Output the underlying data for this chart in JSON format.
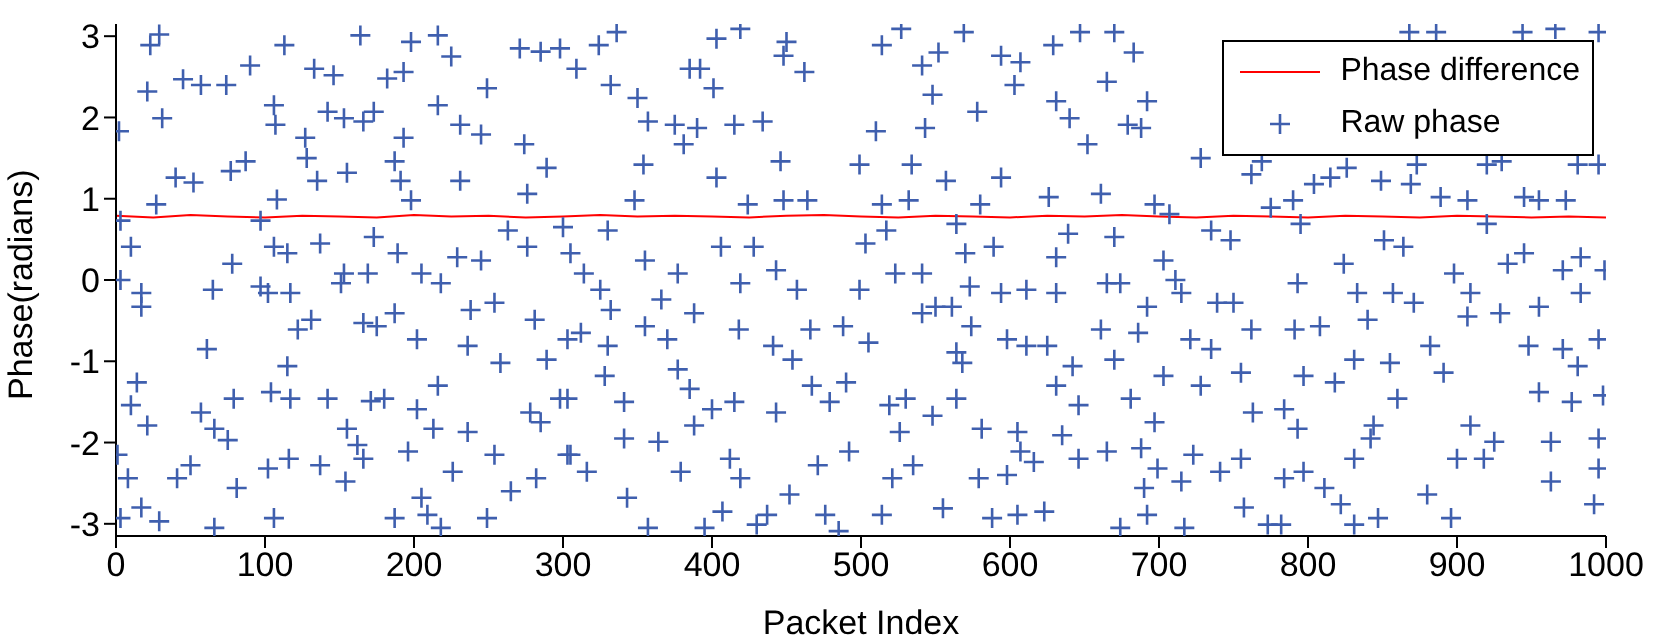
{
  "chart_data": {
    "type": "scatter",
    "xlabel": "Packet Index",
    "ylabel": "Phase(radians)",
    "xlim": [
      0,
      1000
    ],
    "ylim": [
      -3.15,
      3.15
    ],
    "xticks": [
      0,
      100,
      200,
      300,
      400,
      500,
      600,
      700,
      800,
      900,
      1000
    ],
    "yticks": [
      -3,
      -2,
      -1,
      0,
      1,
      2,
      3
    ],
    "legend": "top right",
    "series": [
      {
        "name": "Phase difference",
        "type": "line",
        "color": "#ff0000",
        "marker": "none",
        "x": [
          0,
          25,
          50,
          75,
          100,
          125,
          150,
          175,
          200,
          225,
          250,
          275,
          300,
          325,
          350,
          375,
          400,
          425,
          450,
          475,
          500,
          525,
          550,
          575,
          600,
          625,
          650,
          675,
          700,
          725,
          750,
          775,
          800,
          825,
          850,
          875,
          900,
          925,
          950,
          975,
          1000
        ],
        "values": [
          0.79,
          0.77,
          0.8,
          0.78,
          0.77,
          0.79,
          0.78,
          0.77,
          0.8,
          0.78,
          0.79,
          0.77,
          0.78,
          0.8,
          0.78,
          0.79,
          0.78,
          0.77,
          0.79,
          0.8,
          0.78,
          0.77,
          0.79,
          0.78,
          0.77,
          0.79,
          0.78,
          0.8,
          0.78,
          0.77,
          0.79,
          0.78,
          0.77,
          0.79,
          0.78,
          0.77,
          0.79,
          0.78,
          0.77,
          0.78,
          0.77
        ]
      },
      {
        "name": "Raw phase",
        "color": "#3f5fae",
        "marker": "cross",
        "x": [
          2,
          29,
          23,
          21,
          31,
          45,
          57,
          40,
          52,
          27,
          3,
          10,
          17,
          17,
          3,
          14,
          10,
          21,
          1,
          8,
          17,
          3,
          29,
          41,
          50,
          57,
          66,
          61,
          65,
          78,
          77,
          74,
          90,
          87,
          97,
          97,
          79,
          75,
          81,
          66,
          106,
          102,
          104,
          102,
          106,
          108,
          107,
          113,
          106,
          115,
          117,
          115,
          116,
          117,
          127,
          128,
          135,
          133,
          142,
          146,
          153,
          155,
          164,
          166,
          151,
          142,
          155,
          154,
          137,
          131,
          122,
          137,
          153,
          169,
          173,
          166,
          175,
          171,
          166,
          162,
          180,
          187,
          173,
          182,
          187,
          191,
          193,
          198,
          193,
          198,
          189,
          205,
          187,
          202,
          196,
          202,
          205,
          209,
          216,
          216,
          225,
          231,
          231,
          229,
          218,
          213,
          216,
          218,
          226,
          236,
          236,
          238,
          245,
          249,
          245,
          254,
          258,
          254,
          249,
          265,
          263,
          271,
          276,
          276,
          274,
          285,
          289,
          281,
          278,
          285,
          282,
          289,
          298,
          300,
          298,
          303,
          336,
          324,
          309,
          332,
          350,
          357,
          375,
          381,
          354,
          348,
          330,
          305,
          314,
          325,
          332,
          303,
          312,
          330,
          328,
          303,
          341,
          341,
          305,
          316,
          343,
          357,
          379,
          364,
          385,
          377,
          370,
          355,
          366,
          377,
          355,
          388,
          385,
          392,
          401,
          403,
          419,
          415,
          403,
          390,
          424,
          406,
          419,
          428,
          418,
          400,
          415,
          388,
          412,
          419,
          407,
          395,
          437,
          430,
          452,
          443,
          441,
          443,
          448,
          446,
          434,
          448,
          450,
          464,
          462,
          457,
          466,
          454,
          467,
          479,
          471,
          476,
          485,
          492,
          490,
          488,
          499,
          503,
          499,
          510,
          514,
          527,
          514,
          517,
          523,
          505,
          519,
          530,
          526,
          521,
          514,
          535,
          555,
          548,
          541,
          550,
          541,
          532,
          534,
          541,
          552,
          548,
          543,
          557,
          564,
          570,
          573,
          561,
          574,
          564,
          568,
          564,
          581,
          579,
          588,
          598,
          598,
          594,
          589,
          580,
          594,
          594,
          569,
          578,
          603,
          607,
          629,
          647,
          631,
          640,
          652,
          626,
          639,
          631,
          665,
          631,
          611,
          611,
          625,
          642,
          631,
          646,
          635,
          605,
          607,
          616,
          646,
          623,
          605,
          670,
          683,
          665,
          692,
          679,
          688,
          661,
          697,
          707,
          670,
          703,
          674,
          692,
          711,
          686,
          661,
          670,
          703,
          681,
          697,
          665,
          688,
          699,
          690,
          715,
          692,
          717,
          674,
          723,
          728,
          735,
          721,
          739,
          715,
          735,
          748,
          728,
          762,
          769,
          750,
          762,
          755,
          763,
          755,
          741,
          757,
          773,
          782,
          775,
          790,
          795,
          804,
          815,
          826,
          824,
          793,
          808,
          791,
          797,
          784,
          793,
          784,
          797,
          811,
          822,
          831,
          818,
          831,
          840,
          833,
          851,
          869,
          889,
          907,
          864,
          857,
          871,
          855,
          860,
          844,
          842,
          831,
          847,
          880,
          896,
          900,
          918,
          925,
          909,
          891,
          882,
          907,
          898,
          909,
          929,
          920,
          934,
          945,
          955,
          948,
          971,
          955,
          963,
          977,
          981,
          995,
          998,
          995,
          995,
          992,
          963,
          983,
          999,
          983,
          971,
          955,
          945,
          973,
          995,
          981,
          930,
          920,
          873,
          849,
          868,
          886,
          944,
          966,
          995
        ],
        "values": [
          1.83,
          3.02,
          2.89,
          2.32,
          1.99,
          2.47,
          2.4,
          1.26,
          1.2,
          0.93,
          0.73,
          0.41,
          -0.16,
          -0.33,
          0,
          -1.26,
          -1.54,
          -1.79,
          -2.15,
          -2.44,
          -2.8,
          -2.93,
          -2.97,
          -2.44,
          -2.28,
          -1.63,
          -1.83,
          -0.85,
          -0.12,
          0.2,
          1.34,
          2.4,
          2.64,
          1.46,
          0.73,
          -0.08,
          -1.46,
          -1.97,
          -2.56,
          -3.05,
          -2.93,
          -2.32,
          -1.38,
          -0.16,
          0.41,
          0.99,
          1.91,
          2.89,
          2.15,
          0.33,
          -0.16,
          -1.06,
          -2.2,
          -1.46,
          1.75,
          1.5,
          1.22,
          2.6,
          2.07,
          2.52,
          1.99,
          1.32,
          3.01,
          1.95,
          -0.04,
          -1.46,
          -1.83,
          -2.48,
          -2.28,
          -0.49,
          -0.61,
          0.45,
          0.08,
          0.08,
          0.53,
          -0.53,
          -0.57,
          -1.49,
          -2.2,
          -2.03,
          -1.46,
          -2.93,
          2.07,
          2.48,
          1.46,
          1.22,
          2.56,
          2.93,
          1.75,
          0.98,
          0.33,
          0.08,
          -0.41,
          -0.73,
          -2.11,
          -1.59,
          -2.68,
          -2.89,
          3.01,
          2.15,
          2.75,
          1.91,
          1.22,
          0.28,
          -0.04,
          -1.83,
          -1.3,
          -3.05,
          -2.36,
          -1.87,
          -0.81,
          -0.37,
          0.24,
          2.36,
          1.79,
          -0.28,
          -1.02,
          -2.15,
          -2.93,
          -2.6,
          0.61,
          2.85,
          1.06,
          0.41,
          1.67,
          2.81,
          1.38,
          -0.49,
          -1.63,
          -1.75,
          -2.44,
          -0.98,
          2.85,
          0.65,
          -1.46,
          -2.15,
          3.05,
          2.89,
          2.6,
          2.4,
          2.24,
          1.95,
          1.91,
          1.67,
          1.42,
          0.98,
          0.61,
          0.33,
          0.08,
          -0.12,
          -0.37,
          -0.73,
          -0.65,
          -0.81,
          -1.18,
          -1.46,
          -1.5,
          -1.95,
          -2.15,
          -2.36,
          -2.68,
          -3.05,
          -2.36,
          -1.99,
          -1.34,
          -1.1,
          -0.73,
          -0.57,
          -0.24,
          0.08,
          0.24,
          -0.41,
          2.6,
          2.6,
          2.36,
          2.97,
          3.09,
          1.91,
          1.26,
          1.87,
          0.93,
          0.41,
          -0.04,
          0.41,
          -0.61,
          -1.59,
          -1.5,
          -1.79,
          -2.2,
          -2.44,
          -2.85,
          -3.05,
          -2.89,
          -3.01,
          -2.64,
          -1.63,
          -0.81,
          0.12,
          0.98,
          1.46,
          1.95,
          2.76,
          2.93,
          0.98,
          2.56,
          -0.12,
          -0.61,
          -0.98,
          -1.3,
          -1.5,
          -2.28,
          -2.89,
          -3.09,
          -2.11,
          -1.26,
          -0.57,
          -0.12,
          0.45,
          1.42,
          1.83,
          2.89,
          3.09,
          0.93,
          0.61,
          0.08,
          -0.77,
          -1.54,
          -1.46,
          -1.87,
          -2.44,
          -2.89,
          -2.28,
          -2.81,
          -1.67,
          -0.41,
          -0.33,
          0.08,
          0.98,
          1.42,
          2.64,
          2.8,
          2.28,
          1.87,
          1.22,
          0.69,
          0.33,
          -0.08,
          -0.33,
          -0.57,
          -0.89,
          -1.02,
          -1.46,
          -1.83,
          -2.44,
          -2.93,
          -2.4,
          -0.73,
          -0.16,
          0.41,
          0.93,
          1.26,
          2.76,
          3.05,
          2.07,
          2.4,
          2.68,
          2.89,
          3.05,
          2.2,
          1.99,
          1.67,
          1.02,
          0.57,
          0.28,
          -0.04,
          -0.16,
          -0.12,
          -0.81,
          -0.81,
          -1.06,
          -1.3,
          -1.54,
          -1.91,
          -1.87,
          -2.11,
          -2.24,
          -2.2,
          -2.85,
          -2.89,
          3.05,
          2.8,
          2.44,
          2.2,
          1.91,
          1.87,
          1.06,
          0.93,
          0.81,
          0.53,
          0.24,
          -0.04,
          -0.33,
          0,
          -0.65,
          -0.61,
          -0.98,
          -1.18,
          -1.46,
          -1.75,
          -2.11,
          -2.07,
          -2.32,
          -2.56,
          -2.48,
          -2.89,
          -3.05,
          -3.05,
          -2.15,
          -1.3,
          -0.85,
          -0.73,
          -0.28,
          -0.16,
          0.61,
          0.49,
          1.5,
          1.3,
          1.46,
          -0.28,
          -0.61,
          -1.14,
          -1.63,
          -2.2,
          -2.36,
          -2.8,
          -3.01,
          -3.01,
          0.89,
          0.98,
          0.69,
          1.18,
          1.26,
          1.38,
          0.2,
          -0.04,
          -0.57,
          -0.61,
          -1.18,
          -1.59,
          -1.83,
          -2.44,
          -2.36,
          -2.56,
          -2.76,
          -2.2,
          -1.26,
          -0.98,
          -0.49,
          -0.16,
          0.49,
          1.18,
          1.02,
          0.98,
          0.41,
          -0.16,
          -0.28,
          -1.02,
          -1.46,
          -1.79,
          -1.95,
          -3.01,
          -2.93,
          -2.64,
          -2.93,
          -2.2,
          -2.2,
          -1.99,
          -1.79,
          -1.14,
          -0.81,
          -0.45,
          0.08,
          -0.16,
          -0.41,
          0.69,
          0.2,
          0.33,
          -0.33,
          -0.81,
          -0.85,
          -1.38,
          -1.99,
          -1.5,
          -1.06,
          -0.73,
          -1.42,
          -1.95,
          -2.32,
          -2.76,
          -2.48,
          -0.16,
          0.12,
          0.28,
          0.12,
          0.98,
          1.02,
          0.98,
          1.42,
          1.42,
          1.46,
          1.42,
          1.42,
          1.22,
          3.05,
          3.05,
          3.05,
          3.09,
          3.05
        ]
      }
    ]
  }
}
